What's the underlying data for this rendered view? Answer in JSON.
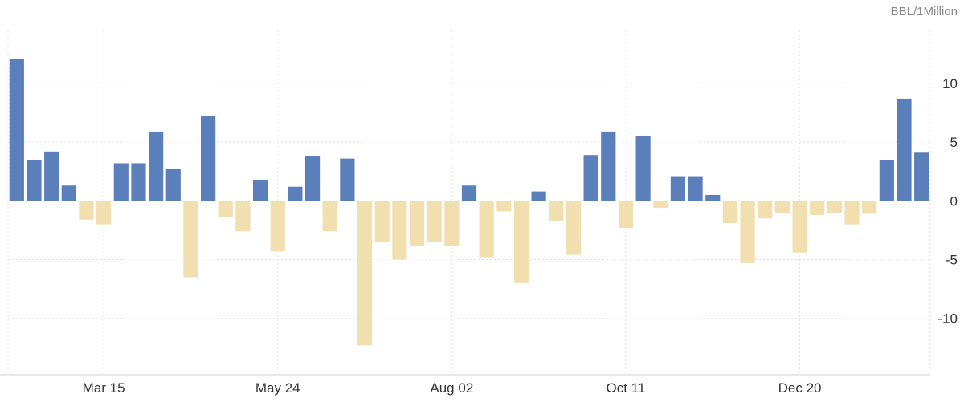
{
  "chart_data": {
    "type": "bar",
    "unit_label": "BBL/1Million",
    "ylim": [
      -14.8,
      14.5
    ],
    "yticks": [
      10,
      5,
      0,
      -5,
      -10
    ],
    "x_tick_labels": [
      {
        "label": "Mar 15",
        "index": 5
      },
      {
        "label": "May 24",
        "index": 15
      },
      {
        "label": "Aug 02",
        "index": 25
      },
      {
        "label": "Oct 11",
        "index": 35
      },
      {
        "label": "Dec 20",
        "index": 45
      }
    ],
    "grid": true,
    "colors": {
      "positive": "#5b7fbb",
      "negative": "#f2dfb0"
    },
    "values": [
      12.1,
      3.5,
      4.2,
      1.3,
      -1.6,
      -2.0,
      3.2,
      3.2,
      5.9,
      2.7,
      -6.5,
      7.2,
      -1.4,
      -2.6,
      1.8,
      -4.3,
      1.2,
      3.8,
      -2.6,
      3.6,
      -12.3,
      -3.5,
      -5.0,
      -3.8,
      -3.5,
      -3.8,
      1.3,
      -4.8,
      -0.9,
      -7.0,
      0.8,
      -1.7,
      -4.6,
      3.9,
      5.9,
      -2.3,
      5.5,
      -0.6,
      2.1,
      2.1,
      0.5,
      -1.9,
      -5.3,
      -1.5,
      -1.0,
      -4.4,
      -1.2,
      -1.0,
      -2.0,
      -1.1,
      3.5,
      8.7,
      4.1
    ]
  }
}
